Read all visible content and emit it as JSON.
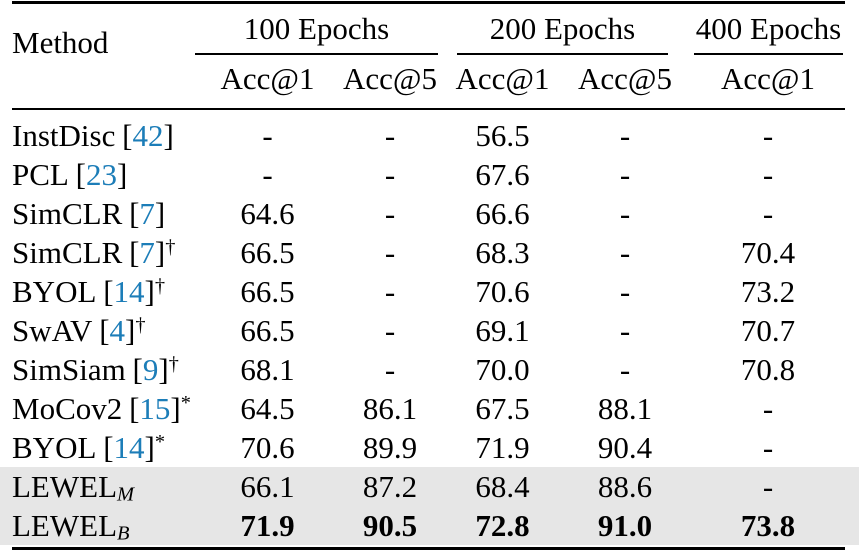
{
  "colors": {
    "citation_blue": "#1c7db8",
    "highlight_gray": "#e6e6e6",
    "text": "#000000",
    "background": "#ffffff"
  },
  "formatting": {
    "bracket_open": "[",
    "bracket_close": "]"
  },
  "header": {
    "method": "Method",
    "groups": [
      {
        "label": "100 Epochs",
        "columns": [
          "Acc@1",
          "Acc@5"
        ]
      },
      {
        "label": "200 Epochs",
        "columns": [
          "Acc@1",
          "Acc@5"
        ]
      },
      {
        "label": "400 Epochs",
        "columns": [
          "Acc@1"
        ]
      }
    ]
  },
  "rows": [
    {
      "method": "InstDisc",
      "citation": "42",
      "superscript": "",
      "subscript": "",
      "values": [
        "-",
        "-",
        "56.5",
        "-",
        "-"
      ],
      "highlighted": false,
      "bold_values": false
    },
    {
      "method": "PCL",
      "citation": "23",
      "superscript": "",
      "subscript": "",
      "values": [
        "-",
        "-",
        "67.6",
        "-",
        "-"
      ],
      "highlighted": false,
      "bold_values": false
    },
    {
      "method": "SimCLR",
      "citation": "7",
      "superscript": "",
      "subscript": "",
      "values": [
        "64.6",
        "-",
        "66.6",
        "-",
        "-"
      ],
      "highlighted": false,
      "bold_values": false
    },
    {
      "method": "SimCLR",
      "citation": "7",
      "superscript": "†",
      "subscript": "",
      "values": [
        "66.5",
        "-",
        "68.3",
        "-",
        "70.4"
      ],
      "highlighted": false,
      "bold_values": false
    },
    {
      "method": "BYOL",
      "citation": "14",
      "superscript": "†",
      "subscript": "",
      "values": [
        "66.5",
        "-",
        "70.6",
        "-",
        "73.2"
      ],
      "highlighted": false,
      "bold_values": false
    },
    {
      "method": "SwAV",
      "citation": "4",
      "superscript": "†",
      "subscript": "",
      "values": [
        "66.5",
        "-",
        "69.1",
        "-",
        "70.7"
      ],
      "highlighted": false,
      "bold_values": false
    },
    {
      "method": "SimSiam",
      "citation": "9",
      "superscript": "†",
      "subscript": "",
      "values": [
        "68.1",
        "-",
        "70.0",
        "-",
        "70.8"
      ],
      "highlighted": false,
      "bold_values": false
    },
    {
      "method": "MoCov2",
      "citation": "15",
      "superscript": "*",
      "subscript": "",
      "values": [
        "64.5",
        "86.1",
        "67.5",
        "88.1",
        "-"
      ],
      "highlighted": false,
      "bold_values": false
    },
    {
      "method": "BYOL",
      "citation": "14",
      "superscript": "*",
      "subscript": "",
      "values": [
        "70.6",
        "89.9",
        "71.9",
        "90.4",
        "-"
      ],
      "highlighted": false,
      "bold_values": false
    },
    {
      "method": "LEWEL",
      "citation": "",
      "superscript": "",
      "subscript": "M",
      "values": [
        "66.1",
        "87.2",
        "68.4",
        "88.6",
        "-"
      ],
      "highlighted": true,
      "bold_values": false
    },
    {
      "method": "LEWEL",
      "citation": "",
      "superscript": "",
      "subscript": "B",
      "values": [
        "71.9",
        "90.5",
        "72.8",
        "91.0",
        "73.8"
      ],
      "highlighted": true,
      "bold_values": true
    }
  ]
}
